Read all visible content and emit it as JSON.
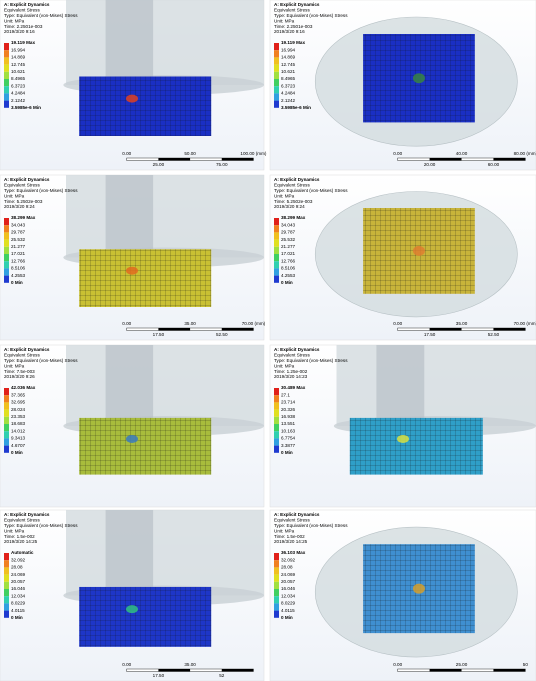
{
  "panels": [
    {
      "header": [
        "A: Explicit Dynamics",
        "Equivalent Stress",
        "Type: Equivalent (von-Mises) Stress",
        "Unit: MPa",
        "Time: 2.2501e-003",
        "2019/3/20 9:16"
      ],
      "legend": [
        "19.119 Max",
        "16.994",
        "14.869",
        "12.745",
        "10.621",
        "8.4965",
        "6.3723",
        "4.2484",
        "2.1242",
        "3.5985e-6 Min"
      ],
      "scale": {
        "top": [
          "0.00",
          "50.00",
          "100.00 (mm)"
        ],
        "bottom": [
          "25.00",
          "75.00"
        ]
      }
    },
    {
      "header": [
        "A: Explicit Dynamics",
        "Equivalent Stress",
        "Type: Equivalent (von-Mises) Stress",
        "Unit: MPa",
        "Time: 2.2501e-003",
        "2019/3/20 9:16"
      ],
      "legend": [
        "19.119 Max",
        "16.994",
        "14.869",
        "12.745",
        "10.621",
        "8.4965",
        "6.3723",
        "4.2484",
        "2.1242",
        "3.5985e-6 Min"
      ],
      "scale": {
        "top": [
          "0.00",
          "40.00",
          "80.00 (mm)"
        ],
        "bottom": [
          "20.00",
          "60.00"
        ]
      }
    },
    {
      "header": [
        "A: Explicit Dynamics",
        "Equivalent Stress",
        "Type: Equivalent (von-Mises) Stress",
        "Unit: MPa",
        "Time: 5.2502e-003",
        "2019/3/20 9:24"
      ],
      "legend": [
        "38.299 Max",
        "34.043",
        "29.787",
        "25.532",
        "21.277",
        "17.021",
        "12.766",
        "8.5106",
        "4.2553",
        "0 Min"
      ],
      "scale": {
        "top": [
          "0.00",
          "35.00",
          "70.00 (mm)"
        ],
        "bottom": [
          "17.50",
          "52.50"
        ]
      }
    },
    {
      "header": [
        "A: Explicit Dynamics",
        "Equivalent Stress",
        "Type: Equivalent (von-Mises) Stress",
        "Unit: MPa",
        "Time: 5.2502e-003",
        "2019/3/20 9:24"
      ],
      "legend": [
        "38.299 Max",
        "34.043",
        "29.787",
        "25.532",
        "21.277",
        "17.021",
        "12.766",
        "8.5106",
        "4.2553",
        "0 Min"
      ],
      "scale": {
        "top": [
          "0.00",
          "35.00",
          "70.00 (mm)"
        ],
        "bottom": [
          "17.50",
          "52.50"
        ]
      }
    },
    {
      "header": [
        "A: Explicit Dynamics",
        "Equivalent Stress",
        "Type: Equivalent (von-Mises) Stress",
        "Unit: MPa",
        "Time: 7.5e-003",
        "2019/3/20 9:26"
      ],
      "legend": [
        "42.036 Max",
        "37.365",
        "32.695",
        "28.024",
        "23.353",
        "18.683",
        "14.012",
        "9.3413",
        "4.6707",
        "0 Min"
      ],
      "scale": {
        "top": [],
        "bottom": []
      }
    },
    {
      "header": [
        "A: Explicit Dynamics",
        "Equivalent Stress",
        "Type: Equivalent (von-Mises) Stress",
        "Unit: MPa",
        "Time: 1.25e-002",
        "2019/3/20 14:23"
      ],
      "legend": [
        "30.489 Max",
        "27.1",
        "23.714",
        "20.326",
        "16.938",
        "13.551",
        "10.163",
        "6.7754",
        "3.3877",
        "0 Min"
      ],
      "scale": {
        "top": [],
        "bottom": []
      }
    },
    {
      "header": [
        "A: Explicit Dynamics",
        "Equivalent Stress",
        "Type: Equivalent (von-Mises) Stress",
        "Unit: MPa",
        "Time: 1.5e-002",
        "2019/3/20 14:25"
      ],
      "legend": [
        "Automatic",
        "32.092",
        "28.08",
        "24.069",
        "20.057",
        "16.046",
        "12.034",
        "8.0229",
        "4.0115",
        "0 Min"
      ],
      "scale": {
        "top": [
          "0.00",
          "35.00"
        ],
        "bottom": [
          "17.50",
          "52"
        ]
      }
    },
    {
      "header": [
        "A: Explicit Dynamics",
        "Equivalent Stress",
        "Type: Equivalent (von-Mises) Stress",
        "Unit: MPa",
        "Time: 1.5e-002",
        "2019/3/20 14:25"
      ],
      "legend": [
        "36.103 Max",
        "32.092",
        "28.08",
        "24.069",
        "20.057",
        "16.046",
        "12.034",
        "8.0229",
        "4.0115",
        "0 Min"
      ],
      "scale": {
        "top": [
          "0.00",
          "25.00",
          "50"
        ],
        "bottom": []
      }
    }
  ]
}
